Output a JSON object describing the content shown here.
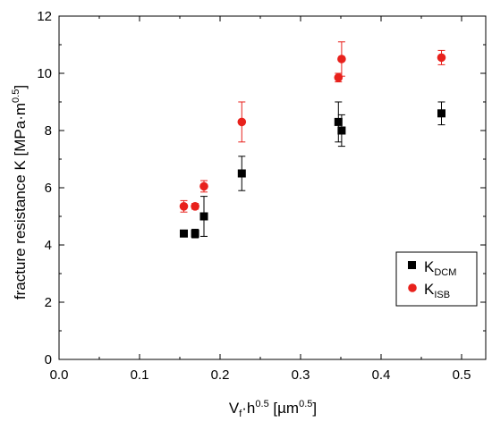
{
  "chart_data": {
    "type": "scatter",
    "xlim": [
      0.0,
      0.53
    ],
    "ylim": [
      0,
      12
    ],
    "x_ticks": [
      0.0,
      0.1,
      0.2,
      0.3,
      0.4,
      0.5
    ],
    "x_tick_labels": [
      "0.0",
      "0.1",
      "0.2",
      "0.3",
      "0.4",
      "0.5"
    ],
    "y_ticks": [
      0,
      2,
      4,
      6,
      8,
      10,
      12
    ],
    "y_tick_labels": [
      "0",
      "2",
      "4",
      "6",
      "8",
      "10",
      "12"
    ],
    "xlabel": {
      "v": "V",
      "v_sub": "f",
      "mid": "·h",
      "mid_sup": "0.5",
      "unit": " [µm",
      "unit_sup": "0.5",
      "end": "]"
    },
    "ylabel": {
      "main": "fracture resistance K [MPa·m",
      "sup": "0.5",
      "end": "]"
    },
    "grid": false,
    "legend_position": "bottom-right",
    "series": [
      {
        "name": "K",
        "name_sub": "DCM",
        "marker": "square",
        "color": "#000000",
        "points": [
          {
            "x": 0.155,
            "y": 4.4,
            "err": 0.0
          },
          {
            "x": 0.169,
            "y": 4.4,
            "err": 0.15
          },
          {
            "x": 0.18,
            "y": 5.0,
            "err": 0.7
          },
          {
            "x": 0.227,
            "y": 6.5,
            "err": 0.6
          },
          {
            "x": 0.347,
            "y": 8.3,
            "err": 0.7
          },
          {
            "x": 0.351,
            "y": 8.0,
            "err": 0.55
          },
          {
            "x": 0.475,
            "y": 8.6,
            "err": 0.4
          }
        ]
      },
      {
        "name": "K",
        "name_sub": "ISB",
        "marker": "circle",
        "color": "#e8211c",
        "points": [
          {
            "x": 0.155,
            "y": 5.35,
            "err": 0.2
          },
          {
            "x": 0.169,
            "y": 5.35,
            "err": 0.1
          },
          {
            "x": 0.18,
            "y": 6.05,
            "err": 0.2
          },
          {
            "x": 0.227,
            "y": 8.3,
            "err": 0.7
          },
          {
            "x": 0.347,
            "y": 9.85,
            "err": 0.15
          },
          {
            "x": 0.351,
            "y": 10.5,
            "err": 0.6
          },
          {
            "x": 0.475,
            "y": 10.55,
            "err": 0.25
          }
        ]
      }
    ]
  }
}
